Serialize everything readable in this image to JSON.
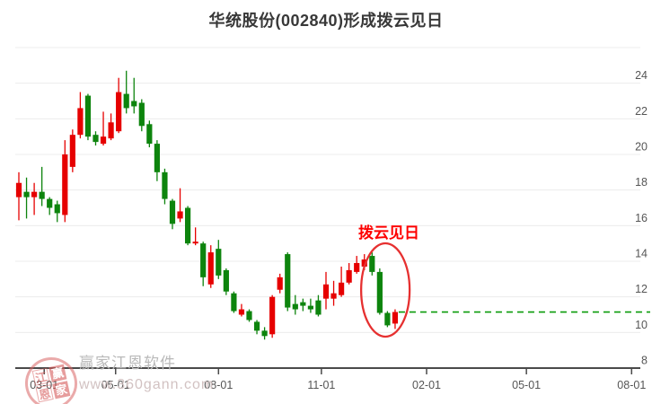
{
  "title": "华统股份(002840)形成拨云见日",
  "annotation": {
    "label": "拨云见日"
  },
  "watermark": {
    "seal_chars": [
      "江",
      "赢",
      "恩",
      "家"
    ],
    "name": "赢家江恩软件",
    "url": "www.360gann.com"
  },
  "colors": {
    "up": "#e60000",
    "down": "#0d840d",
    "dashed_line": "#089a08",
    "annotation": "#fe0000",
    "ellipse": "#e63030",
    "grid": "#ececec",
    "axis": "#4a4a4a",
    "tick_label": "#555555"
  },
  "chart_data": {
    "type": "candlestick",
    "title": "华统股份(002840)形成拨云见日",
    "y_ticks": [
      8,
      10,
      12,
      14,
      16,
      18,
      20,
      22,
      24
    ],
    "y_range": [
      8,
      26
    ],
    "grid": true,
    "x_ticks": [
      {
        "label": "03-01",
        "i": 3.3
      },
      {
        "label": "05-01",
        "i": 12.6
      },
      {
        "label": "08-01",
        "i": 26.0
      },
      {
        "label": "11-01",
        "i": 39.4
      },
      {
        "label": "02-01",
        "i": 53.1
      },
      {
        "label": "05-01",
        "i": 66.1
      },
      {
        "label": "08-01",
        "i": 79.8
      }
    ],
    "candles_ohlc": [
      [
        17.6,
        19.0,
        16.3,
        18.4
      ],
      [
        17.9,
        18.7,
        16.4,
        17.6
      ],
      [
        17.6,
        18.4,
        16.6,
        17.9
      ],
      [
        17.9,
        19.3,
        17.1,
        17.5
      ],
      [
        17.5,
        17.6,
        16.6,
        17.0
      ],
      [
        17.2,
        17.4,
        16.2,
        16.7
      ],
      [
        16.6,
        20.8,
        16.2,
        20.0
      ],
      [
        19.3,
        21.4,
        19.0,
        21.1
      ],
      [
        21.1,
        23.5,
        20.9,
        22.6
      ],
      [
        23.3,
        23.4,
        20.8,
        21.0
      ],
      [
        21.1,
        21.3,
        20.5,
        20.7
      ],
      [
        20.6,
        22.4,
        20.5,
        21.0
      ],
      [
        20.9,
        22.3,
        20.8,
        21.8
      ],
      [
        21.3,
        24.3,
        21.2,
        23.5
      ],
      [
        23.4,
        24.7,
        22.3,
        22.6
      ],
      [
        23.0,
        24.3,
        22.3,
        22.7
      ],
      [
        22.9,
        23.1,
        21.3,
        21.6
      ],
      [
        21.7,
        21.9,
        20.4,
        20.6
      ],
      [
        20.6,
        20.8,
        18.5,
        19.0
      ],
      [
        19.0,
        19.2,
        17.2,
        17.5
      ],
      [
        17.4,
        17.5,
        15.8,
        16.1
      ],
      [
        16.4,
        18.1,
        16.2,
        16.8
      ],
      [
        17.0,
        17.1,
        14.9,
        15.0
      ],
      [
        15.0,
        15.9,
        14.9,
        15.1
      ],
      [
        15.0,
        15.1,
        12.6,
        13.1
      ],
      [
        12.7,
        14.9,
        12.5,
        14.5
      ],
      [
        14.7,
        15.2,
        13.0,
        13.2
      ],
      [
        13.5,
        13.6,
        12.1,
        12.3
      ],
      [
        12.2,
        12.3,
        11.1,
        11.2
      ],
      [
        11.0,
        11.6,
        10.9,
        11.3
      ],
      [
        11.2,
        11.3,
        10.6,
        10.7
      ],
      [
        10.6,
        10.7,
        9.9,
        10.1
      ],
      [
        10.1,
        10.3,
        9.6,
        9.8
      ],
      [
        9.9,
        12.1,
        9.7,
        12.0
      ],
      [
        12.4,
        13.3,
        12.2,
        13.1
      ],
      [
        14.4,
        14.5,
        11.2,
        11.4
      ],
      [
        11.6,
        12.1,
        11.0,
        11.3
      ],
      [
        11.7,
        11.9,
        11.2,
        11.5
      ],
      [
        11.5,
        11.9,
        11.1,
        11.3
      ],
      [
        11.8,
        12.1,
        10.9,
        11.0
      ],
      [
        11.9,
        13.4,
        11.3,
        12.7
      ],
      [
        11.9,
        12.9,
        11.5,
        12.2
      ],
      [
        12.1,
        13.7,
        12.0,
        12.8
      ],
      [
        12.8,
        13.9,
        12.7,
        13.5
      ],
      [
        13.4,
        14.3,
        13.3,
        13.9
      ],
      [
        13.7,
        14.4,
        13.5,
        14.1
      ],
      [
        14.3,
        14.5,
        13.2,
        13.4
      ],
      [
        13.4,
        13.6,
        11.0,
        11.1
      ],
      [
        11.1,
        11.2,
        10.3,
        10.4
      ],
      [
        10.5,
        11.3,
        10.2,
        11.15
      ]
    ],
    "last_close_line": 11.15,
    "highlight": {
      "label": "拨云见日",
      "from_candle": 46,
      "to_candle": 49
    },
    "legend_position": "none"
  }
}
